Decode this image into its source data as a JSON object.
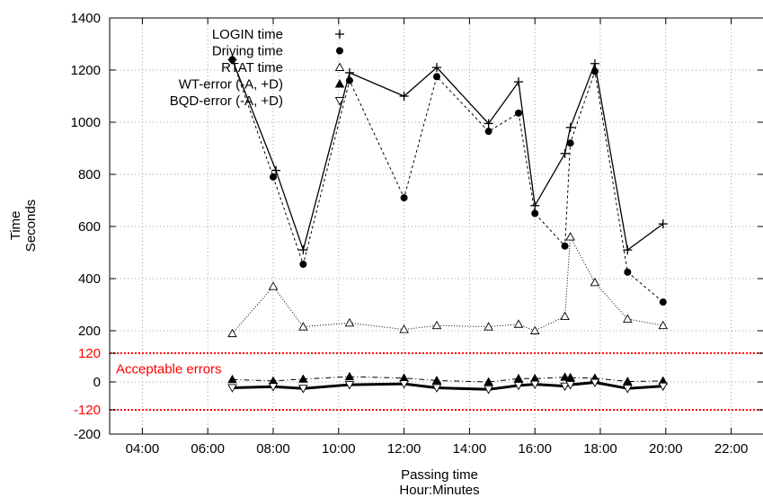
{
  "chart_data": {
    "type": "line",
    "title": "",
    "xlabel": [
      "Passing time",
      "Hour:Minutes"
    ],
    "ylabel": [
      "Time",
      "Seconds"
    ],
    "x_unit": "Hour:Minutes",
    "xlim": [
      "03:00",
      "23:00"
    ],
    "x_ticks": [
      "04:00",
      "06:00",
      "08:00",
      "10:00",
      "12:00",
      "14:00",
      "16:00",
      "18:00",
      "20:00",
      "22:00"
    ],
    "y_ticks_upper": [
      200,
      400,
      600,
      800,
      1000,
      1200,
      1400
    ],
    "y_ticks_lower": [
      120,
      0,
      -120,
      -200
    ],
    "y_axis_note": "Axis is broken: 200 to 1400 are linear in seconds; the band below 200 shows -200, -120, 0 and 120 on an enlarged scale.",
    "grid": true,
    "legend_position": "top-left",
    "reference_lines": [
      {
        "y": 120,
        "color": "#ff0000",
        "style": "dotted"
      },
      {
        "y": -120,
        "color": "#ff0000",
        "style": "dotted"
      }
    ],
    "annotations": [
      {
        "text": "Acceptable errors",
        "color": "#ff0000",
        "x": "04:00",
        "y": 55
      }
    ],
    "series": [
      {
        "name": "LOGIN time",
        "marker": "plus",
        "line": "solid",
        "color": "#000000",
        "x": [
          "06:45",
          "08:05",
          "08:55",
          "10:20",
          "12:00",
          "13:00",
          "14:35",
          "15:30",
          "16:00",
          "16:55",
          "17:05",
          "17:50",
          "18:50",
          "19:55"
        ],
        "y": [
          1240,
          815,
          510,
          1190,
          1100,
          1210,
          995,
          1155,
          680,
          880,
          980,
          1225,
          510,
          610
        ]
      },
      {
        "name": "Driving time",
        "marker": "circle",
        "line": "dashed",
        "color": "#000000",
        "x": [
          "06:45",
          "08:00",
          "08:55",
          "10:20",
          "12:00",
          "13:00",
          "14:35",
          "15:30",
          "16:00",
          "16:55",
          "17:05",
          "17:50",
          "18:50",
          "19:55"
        ],
        "y": [
          1240,
          790,
          455,
          1160,
          710,
          1175,
          965,
          1035,
          650,
          525,
          920,
          1195,
          425,
          310
        ]
      },
      {
        "name": "RTAT time",
        "marker": "triangle-up-open",
        "line": "dotted",
        "color": "#000000",
        "x": [
          "06:45",
          "08:00",
          "08:55",
          "10:20",
          "12:00",
          "13:00",
          "14:35",
          "15:30",
          "16:00",
          "16:55",
          "17:05",
          "17:50",
          "18:50",
          "19:55"
        ],
        "y": [
          190,
          370,
          215,
          230,
          205,
          220,
          215,
          225,
          200,
          255,
          560,
          385,
          245,
          220
        ]
      },
      {
        "name": "WT-error (-A, +D)",
        "marker": "triangle-up-filled",
        "line": "dash-dot",
        "color": "#000000",
        "x": [
          "06:45",
          "08:00",
          "08:55",
          "10:20",
          "12:00",
          "13:00",
          "14:35",
          "15:30",
          "16:00",
          "16:55",
          "17:05",
          "17:50",
          "18:50",
          "19:55"
        ],
        "y": [
          10,
          4,
          12,
          22,
          16,
          6,
          0,
          14,
          14,
          20,
          18,
          16,
          2,
          4
        ]
      },
      {
        "name": "BQD-error (-A, +D)",
        "marker": "triangle-down-open",
        "line": "solid-thick",
        "color": "#000000",
        "x": [
          "06:45",
          "08:00",
          "08:55",
          "10:20",
          "12:00",
          "13:00",
          "14:35",
          "15:30",
          "16:00",
          "16:55",
          "17:05",
          "17:50",
          "18:50",
          "19:55"
        ],
        "y": [
          -25,
          -20,
          -28,
          -12,
          -8,
          -25,
          -32,
          -15,
          -10,
          -18,
          -12,
          -2,
          -28,
          -18
        ]
      }
    ]
  }
}
